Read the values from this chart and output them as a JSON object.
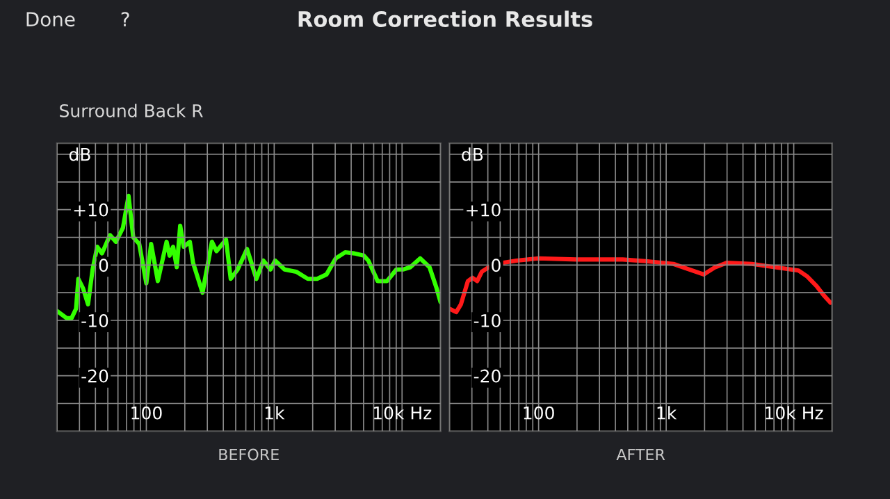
{
  "chart_data": [
    {
      "type": "line",
      "title": "Room Correction Results",
      "subtitle": "Surround Back R",
      "annotations": [
        "Done",
        "?"
      ],
      "xlabel": "BEFORE",
      "ylabel": "dB",
      "log": "x",
      "grid": true,
      "xlim": [
        20,
        20000
      ],
      "ylim": [
        -30,
        22
      ],
      "xticks": [
        {
          "value": 20,
          "label": null
        },
        {
          "value": 30,
          "label": null
        },
        {
          "value": 40,
          "label": null
        },
        {
          "value": 50,
          "label": null
        },
        {
          "value": 60,
          "label": null
        },
        {
          "value": 70,
          "label": null
        },
        {
          "value": 80,
          "label": null
        },
        {
          "value": 90,
          "label": null
        },
        {
          "value": 100,
          "label": "100"
        },
        {
          "value": 200,
          "label": null
        },
        {
          "value": 300,
          "label": null
        },
        {
          "value": 400,
          "label": null
        },
        {
          "value": 500,
          "label": null
        },
        {
          "value": 600,
          "label": null
        },
        {
          "value": 700,
          "label": null
        },
        {
          "value": 800,
          "label": null
        },
        {
          "value": 900,
          "label": null
        },
        {
          "value": 1000,
          "label": "1k"
        },
        {
          "value": 2000,
          "label": null
        },
        {
          "value": 3000,
          "label": null
        },
        {
          "value": 4000,
          "label": null
        },
        {
          "value": 5000,
          "label": null
        },
        {
          "value": 6000,
          "label": null
        },
        {
          "value": 7000,
          "label": null
        },
        {
          "value": 8000,
          "label": null
        },
        {
          "value": 9000,
          "label": null
        },
        {
          "value": 10000,
          "label": "10k Hz"
        },
        {
          "value": 20000,
          "label": null
        }
      ],
      "yticks": [
        {
          "value": -25,
          "label": null
        },
        {
          "value": -20,
          "label": "-20"
        },
        {
          "value": -15,
          "label": null
        },
        {
          "value": -10,
          "label": "-10"
        },
        {
          "value": -5,
          "label": null
        },
        {
          "value": 0,
          "label": "0"
        },
        {
          "value": 5,
          "label": null
        },
        {
          "value": 10,
          "label": "+10"
        },
        {
          "value": 15,
          "label": null
        },
        {
          "value": 20,
          "label": null
        }
      ],
      "series": [
        {
          "color": "#33ff00",
          "x": [
            20,
            23.8,
            26,
            28.2,
            29.4,
            32,
            35,
            38,
            41.3,
            45,
            52,
            57.8,
            65.6,
            72.6,
            79,
            88,
            100,
            109,
            123,
            144,
            152,
            162,
            173,
            184,
            196,
            219,
            232,
            275,
            326,
            354,
            420,
            457,
            518,
            613,
            726,
            822,
            935,
            1018,
            1205,
            1485,
            1832,
            2165,
            2565,
            3030,
            3590,
            4240,
            5020,
            5450,
            6440,
            7630,
            9030,
            10250,
            11600,
            13860,
            16400,
            18630,
            20000
          ],
          "values": [
            -8.3,
            -9.6,
            -9.6,
            -7.9,
            -2.5,
            -4.2,
            -7.1,
            -0.8,
            3.3,
            2.1,
            5.4,
            4.2,
            6.7,
            12.5,
            5,
            3.8,
            -3.3,
            3.8,
            -2.9,
            4.2,
            1.7,
            3.3,
            -0.4,
            7.1,
            3.3,
            4.2,
            0.4,
            -5,
            4.2,
            2.5,
            4.6,
            -2.5,
            -0.8,
            2.9,
            -2.5,
            0.8,
            -0.8,
            0.8,
            -0.8,
            -1.2,
            -2.5,
            -2.5,
            -1.7,
            1.2,
            2.3,
            2.1,
            1.7,
            0.8,
            -2.9,
            -2.9,
            -0.8,
            -0.8,
            -0.4,
            1.2,
            -0.4,
            -4.2,
            -6.7
          ]
        }
      ]
    },
    {
      "type": "line",
      "xlabel": "AFTER",
      "ylabel": "dB",
      "log": "x",
      "grid": true,
      "xlim": [
        20,
        20000
      ],
      "ylim": [
        -30,
        22
      ],
      "xticks": [
        {
          "value": 20,
          "label": null
        },
        {
          "value": 30,
          "label": null
        },
        {
          "value": 40,
          "label": null
        },
        {
          "value": 50,
          "label": null
        },
        {
          "value": 60,
          "label": null
        },
        {
          "value": 70,
          "label": null
        },
        {
          "value": 80,
          "label": null
        },
        {
          "value": 90,
          "label": null
        },
        {
          "value": 100,
          "label": "100"
        },
        {
          "value": 200,
          "label": null
        },
        {
          "value": 300,
          "label": null
        },
        {
          "value": 400,
          "label": null
        },
        {
          "value": 500,
          "label": null
        },
        {
          "value": 600,
          "label": null
        },
        {
          "value": 700,
          "label": null
        },
        {
          "value": 800,
          "label": null
        },
        {
          "value": 900,
          "label": null
        },
        {
          "value": 1000,
          "label": "1k"
        },
        {
          "value": 2000,
          "label": null
        },
        {
          "value": 3000,
          "label": null
        },
        {
          "value": 4000,
          "label": null
        },
        {
          "value": 5000,
          "label": null
        },
        {
          "value": 6000,
          "label": null
        },
        {
          "value": 7000,
          "label": null
        },
        {
          "value": 8000,
          "label": null
        },
        {
          "value": 9000,
          "label": null
        },
        {
          "value": 10000,
          "label": "10k Hz"
        },
        {
          "value": 20000,
          "label": null
        }
      ],
      "yticks": [
        {
          "value": -25,
          "label": null
        },
        {
          "value": -20,
          "label": "-20"
        },
        {
          "value": -15,
          "label": null
        },
        {
          "value": -10,
          "label": "-10"
        },
        {
          "value": -5,
          "label": null
        },
        {
          "value": 0,
          "label": "0"
        },
        {
          "value": 5,
          "label": null
        },
        {
          "value": 10,
          "label": "+10"
        },
        {
          "value": 15,
          "label": null
        },
        {
          "value": 20,
          "label": null
        }
      ],
      "series": [
        {
          "color": "#ff1a1a",
          "x": [
            20,
            22.6,
            24.6,
            27.9,
            30.3,
            33,
            35.9,
            40.6,
            52,
            67,
            100,
            198,
            456,
            690,
            1140,
            1470,
            1970,
            2420,
            2980,
            4700,
            7140,
            10900,
            12800,
            15100,
            17100,
            19400
          ],
          "values": [
            -7.9,
            -8.5,
            -7.1,
            -2.9,
            -2.3,
            -2.9,
            -1.2,
            -0.4,
            0.4,
            0.8,
            1.2,
            1.0,
            1.0,
            0.7,
            0.2,
            -0.7,
            -1.7,
            -0.4,
            0.4,
            0.2,
            -0.4,
            -1.0,
            -2.1,
            -3.8,
            -5.4,
            -6.8
          ]
        }
      ]
    }
  ]
}
